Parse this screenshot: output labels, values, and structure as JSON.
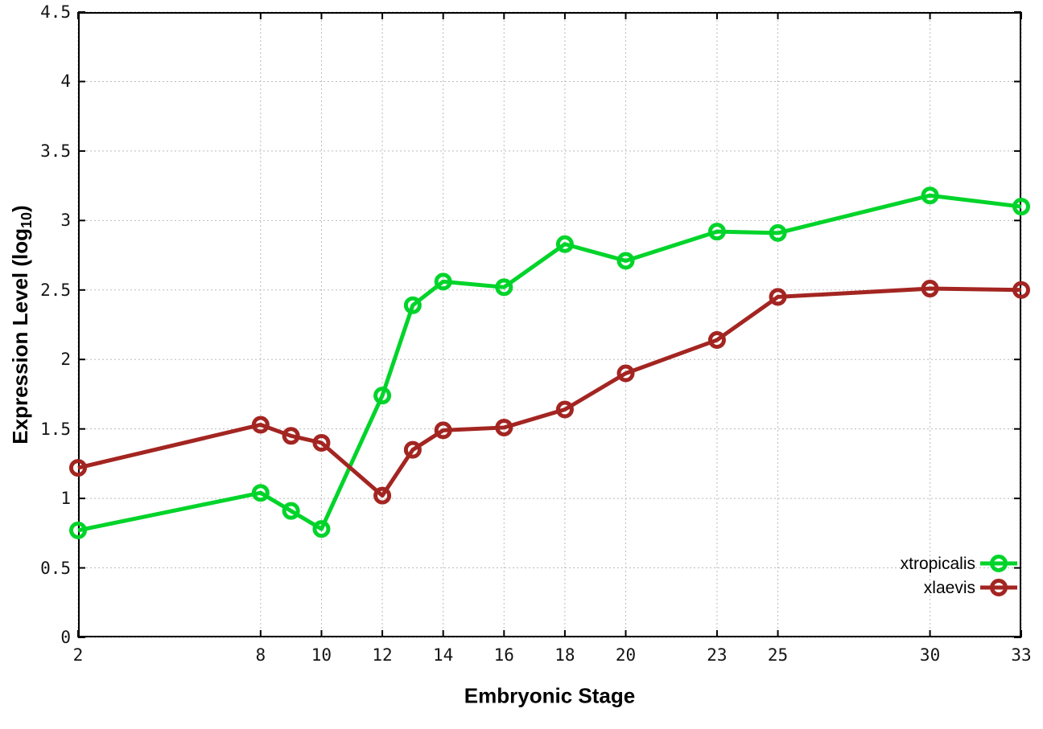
{
  "chart_data": {
    "type": "line",
    "title": "",
    "xlabel": "Embryonic Stage",
    "ylabel": "Expression Level (log10)",
    "ylabel_parts": {
      "main": "Expression Level (log",
      "sub": "10",
      "close": ")"
    },
    "x": [
      2,
      8,
      9,
      10,
      12,
      13,
      14,
      16,
      18,
      20,
      23,
      25,
      30,
      33
    ],
    "series": [
      {
        "name": "xtropicalis",
        "color": "#00d42a",
        "values": [
          0.77,
          1.04,
          0.91,
          0.78,
          1.74,
          2.39,
          2.56,
          2.52,
          2.83,
          2.71,
          2.92,
          2.91,
          3.18,
          3.1
        ]
      },
      {
        "name": "xlaevis",
        "color": "#a32521",
        "values": [
          1.22,
          1.53,
          1.45,
          1.4,
          1.02,
          1.35,
          1.49,
          1.51,
          1.64,
          1.9,
          2.14,
          2.45,
          2.51,
          2.5
        ]
      }
    ],
    "xlim": [
      2,
      33
    ],
    "ylim": [
      0,
      4.5
    ],
    "xticks": [
      2,
      8,
      10,
      12,
      14,
      16,
      18,
      20,
      23,
      25,
      30,
      33
    ],
    "xtick_labels": [
      "2",
      "8",
      "10",
      "12",
      "14",
      "16",
      "18",
      "20",
      "23",
      "25",
      "30",
      "33"
    ],
    "yticks": [
      0,
      0.5,
      1,
      1.5,
      2,
      2.5,
      3,
      3.5,
      4,
      4.5
    ],
    "ytick_labels": [
      "0",
      "0.5",
      "1",
      "1.5",
      "2",
      "2.5",
      "3",
      "3.5",
      "4",
      "4.5"
    ],
    "grid": true,
    "legend_position": "bottom-right",
    "legend": [
      "xtropicalis",
      "xlaevis"
    ]
  },
  "colors": {
    "background": "#ffffff",
    "border": "#000000",
    "grid": "#bbbbbb",
    "tick_text": "#141414",
    "xtropicalis": "#00d42a",
    "xlaevis": "#a32521"
  }
}
